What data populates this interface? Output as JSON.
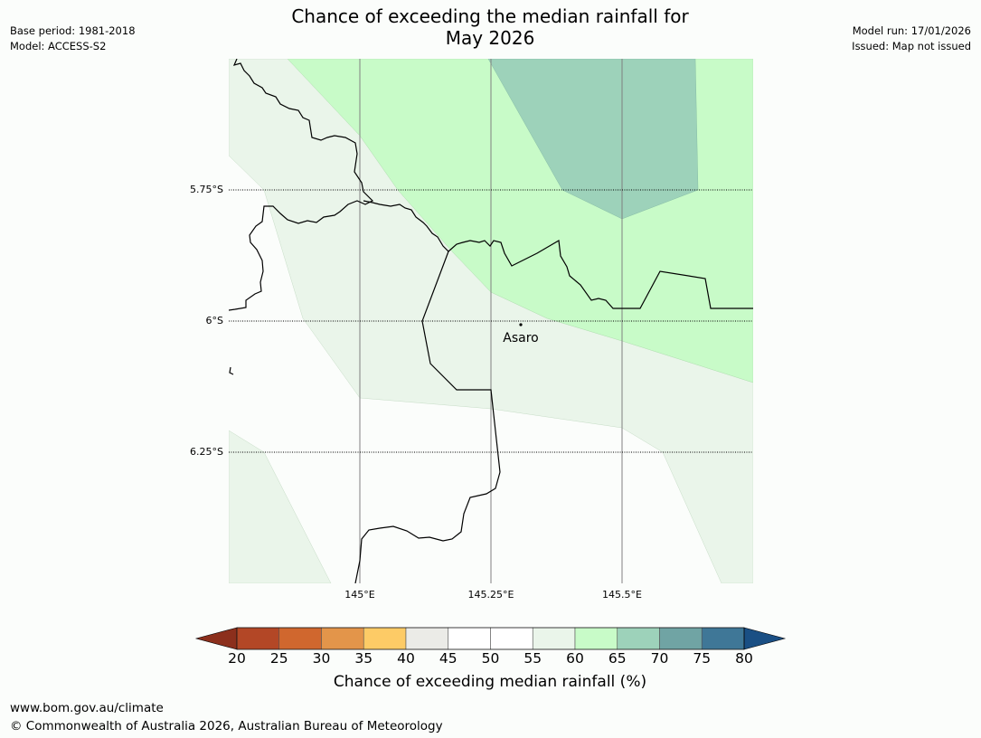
{
  "title_line1": "Chance of exceeding the median rainfall for",
  "title_line2": "May 2026",
  "meta": {
    "base_period": "Base period: 1981-2018",
    "model": "Model: ACCESS-S2",
    "model_run": "Model run: 17/01/2026",
    "issued": "Issued: Map not issued"
  },
  "map": {
    "lat_labels": [
      "5.75°S",
      "6°S",
      "6.25°S"
    ],
    "lon_labels": [
      "145°E",
      "145.25°E",
      "145.5°E"
    ],
    "place": "Asaro"
  },
  "colorbar": {
    "ticks": [
      "20",
      "25",
      "30",
      "35",
      "40",
      "45",
      "50",
      "55",
      "60",
      "65",
      "70",
      "75",
      "80"
    ],
    "colors": [
      "#b34726",
      "#d0672e",
      "#e3954a",
      "#fdcb66",
      "#ebebe7",
      "#ffffff",
      "#ffffff",
      "#eaf5ea",
      "#c8fbc8",
      "#9dd2ba",
      "#70a4a4",
      "#3f7797"
    ],
    "under_color": "#8c2f1c",
    "over_color": "#1a4f84",
    "label": "Chance of exceeding median rainfall (%)"
  },
  "footer": {
    "url": "www.bom.gov.au/climate",
    "copyright": "© Commonwealth of Australia 2026, Australian Bureau of Meteorology"
  }
}
